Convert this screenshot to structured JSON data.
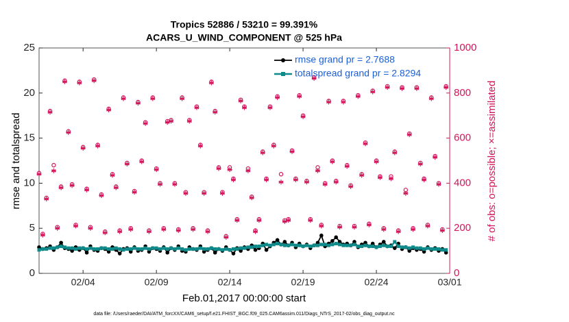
{
  "chart_data": {
    "type": "line",
    "title": [
      "Tropics 52886 / 53210 = 99.391%",
      "ACARS_U_WIND_COMPONENT @ 525 hPa"
    ],
    "xlabel": "Feb.01,2017 00:00:00 start",
    "ylabel": "rmse and totalspread",
    "y2label": "# of obs: o=possible; ×=assimilated",
    "footnote": "data file: /Users/raeder/DAI/ATM_forcXX/CAM6_setup/f.e21.FHIST_BGC.f09_025.CAM6assim.011/Diags_NTrS_2017-02/obs_diag_output.nc",
    "xlim": [
      0,
      28
    ],
    "xticks": [
      {
        "value": 3,
        "label": "02/04"
      },
      {
        "value": 8,
        "label": "02/09"
      },
      {
        "value": 13,
        "label": "02/14"
      },
      {
        "value": 18,
        "label": "02/19"
      },
      {
        "value": 23,
        "label": "02/24"
      },
      {
        "value": 28,
        "label": "03/01"
      }
    ],
    "ylim": [
      0,
      25
    ],
    "yticks": [
      0,
      5,
      10,
      15,
      20,
      25
    ],
    "y2lim": [
      0,
      1000
    ],
    "y2ticks": [
      0,
      200,
      400,
      600,
      800,
      1000
    ],
    "legend": "upper right",
    "x": [
      0,
      0.25,
      0.5,
      0.75,
      1,
      1.25,
      1.5,
      1.75,
      2,
      2.25,
      2.5,
      2.75,
      3,
      3.25,
      3.5,
      3.75,
      4,
      4.25,
      4.5,
      4.75,
      5,
      5.25,
      5.5,
      5.75,
      6,
      6.25,
      6.5,
      6.75,
      7,
      7.25,
      7.5,
      7.75,
      8,
      8.25,
      8.5,
      8.75,
      9,
      9.25,
      9.5,
      9.75,
      10,
      10.25,
      10.5,
      10.75,
      11,
      11.25,
      11.5,
      11.75,
      12,
      12.25,
      12.5,
      12.75,
      13,
      13.25,
      13.5,
      13.75,
      14,
      14.25,
      14.5,
      14.75,
      15,
      15.25,
      15.5,
      15.75,
      16,
      16.25,
      16.5,
      16.75,
      17,
      17.25,
      17.5,
      17.75,
      18,
      18.25,
      18.5,
      18.75,
      19,
      19.25,
      19.5,
      19.75,
      20,
      20.25,
      20.5,
      20.75,
      21,
      21.25,
      21.5,
      21.75,
      22,
      22.25,
      22.5,
      22.75,
      23,
      23.25,
      23.5,
      23.75,
      24,
      24.25,
      24.5,
      24.75,
      25,
      25.25,
      25.5,
      25.75,
      26,
      26.25,
      26.5,
      26.75,
      27,
      27.25,
      27.5,
      27.75
    ],
    "series": [
      {
        "name": "rmse grand pr = 2.7688",
        "color": "#000000",
        "marker": "o",
        "values": [
          2.9,
          2.7,
          2.8,
          3.0,
          2.6,
          2.9,
          3.4,
          2.8,
          2.7,
          2.5,
          2.9,
          2.6,
          2.8,
          2.3,
          3.0,
          2.6,
          2.5,
          2.8,
          2.7,
          2.4,
          2.9,
          2.6,
          2.2,
          2.7,
          2.8,
          2.4,
          2.9,
          2.5,
          2.6,
          3.0,
          2.4,
          2.8,
          2.7,
          2.5,
          2.9,
          2.3,
          2.8,
          2.6,
          3.0,
          2.5,
          2.4,
          2.9,
          2.7,
          2.6,
          3.0,
          2.4,
          2.6,
          2.8,
          2.3,
          2.7,
          2.5,
          2.9,
          2.6,
          2.2,
          2.8,
          2.5,
          2.9,
          2.7,
          3.1,
          2.6,
          2.8,
          3.3,
          2.6,
          3.0,
          3.4,
          3.7,
          3.2,
          3.5,
          3.1,
          3.4,
          2.9,
          3.3,
          3.0,
          3.2,
          2.8,
          3.1,
          3.4,
          4.2,
          3.0,
          3.3,
          3.6,
          4.0,
          3.5,
          3.2,
          3.3,
          3.1,
          3.5,
          2.9,
          3.2,
          3.4,
          3.0,
          3.3,
          2.9,
          3.2,
          3.5,
          3.0,
          3.1,
          2.8,
          3.3,
          2.7,
          2.9,
          2.5,
          2.8,
          2.6,
          2.7,
          2.4,
          2.9,
          2.6,
          2.8,
          2.5,
          2.7,
          2.3
        ]
      },
      {
        "name": "totalspread grand pr = 2.8294",
        "color": "#0e8a8a",
        "marker": "s",
        "values": [
          2.6,
          2.7,
          2.7,
          2.8,
          2.8,
          2.9,
          3.0,
          2.9,
          2.8,
          2.8,
          2.7,
          2.8,
          2.8,
          2.7,
          2.8,
          2.7,
          2.7,
          2.8,
          2.8,
          2.7,
          2.7,
          2.8,
          2.7,
          2.6,
          2.7,
          2.7,
          2.8,
          2.7,
          2.7,
          2.8,
          2.7,
          2.8,
          2.8,
          2.7,
          2.8,
          2.7,
          2.8,
          2.7,
          2.8,
          2.7,
          2.6,
          2.7,
          2.7,
          2.7,
          2.8,
          2.7,
          2.7,
          2.8,
          2.7,
          2.7,
          2.6,
          2.7,
          2.6,
          2.7,
          2.7,
          2.8,
          2.8,
          2.9,
          2.9,
          3.0,
          3.0,
          3.1,
          3.2,
          3.1,
          3.2,
          3.3,
          3.2,
          3.1,
          3.1,
          3.2,
          3.1,
          3.1,
          3.0,
          3.1,
          3.0,
          3.1,
          3.1,
          3.2,
          3.2,
          3.1,
          3.2,
          3.3,
          3.2,
          3.1,
          3.1,
          3.1,
          3.2,
          3.0,
          3.0,
          3.1,
          3.0,
          3.0,
          2.9,
          3.0,
          3.1,
          3.0,
          3.0,
          3.5,
          3.0,
          2.9,
          2.9,
          2.8,
          2.9,
          2.8,
          2.8,
          2.7,
          2.8,
          2.7,
          2.7,
          2.7,
          2.6,
          2.6
        ]
      },
      {
        "color": "#d4145a",
        "marker": "o",
        "axis": "y2",
        "values": [
          445,
          175,
          335,
          720,
          480,
          205,
          385,
          855,
          630,
          395,
          215,
          850,
          560,
          375,
          205,
          860,
          570,
          350,
          185,
          730,
          440,
          385,
          190,
          780,
          490,
          200,
          365,
          760,
          500,
          670,
          190,
          780,
          465,
          400,
          200,
          675,
          680,
          400,
          195,
          780,
          360,
          680,
          200,
          740,
          570,
          360,
          190,
          850,
          720,
          470,
          360,
          165,
          470,
          420,
          240,
          770,
          740,
          465,
          340,
          190,
          240,
          540,
          420,
          740,
          570,
          785,
          440,
          235,
          240,
          545,
          420,
          790,
          700,
          410,
          240,
          870,
          470,
          215,
          400,
          765,
          500,
          410,
          210,
          765,
          480,
          390,
          210,
          790,
          440,
          580,
          220,
          810,
          500,
          430,
          200,
          830,
          430,
          540,
          190,
          825,
          370,
          620,
          200,
          825,
          490,
          420,
          215,
          780,
          520,
          400,
          195,
          830
        ]
      },
      {
        "color": "#d4145a",
        "marker": "*",
        "axis": "y2",
        "values": [
          440,
          170,
          330,
          715,
          455,
          200,
          380,
          850,
          625,
          390,
          210,
          845,
          555,
          370,
          200,
          855,
          565,
          345,
          180,
          725,
          435,
          380,
          185,
          775,
          485,
          195,
          360,
          755,
          495,
          665,
          185,
          775,
          460,
          395,
          195,
          670,
          675,
          395,
          190,
          775,
          355,
          675,
          195,
          735,
          565,
          355,
          185,
          845,
          715,
          465,
          355,
          160,
          460,
          415,
          235,
          765,
          735,
          455,
          335,
          185,
          235,
          535,
          415,
          735,
          565,
          780,
          405,
          230,
          235,
          540,
          415,
          785,
          695,
          405,
          235,
          865,
          455,
          210,
          395,
          760,
          495,
          405,
          205,
          760,
          475,
          385,
          205,
          785,
          435,
          575,
          215,
          805,
          495,
          425,
          195,
          825,
          420,
          535,
          185,
          820,
          355,
          615,
          195,
          820,
          485,
          415,
          210,
          775,
          515,
          395,
          190,
          825
        ]
      }
    ]
  }
}
